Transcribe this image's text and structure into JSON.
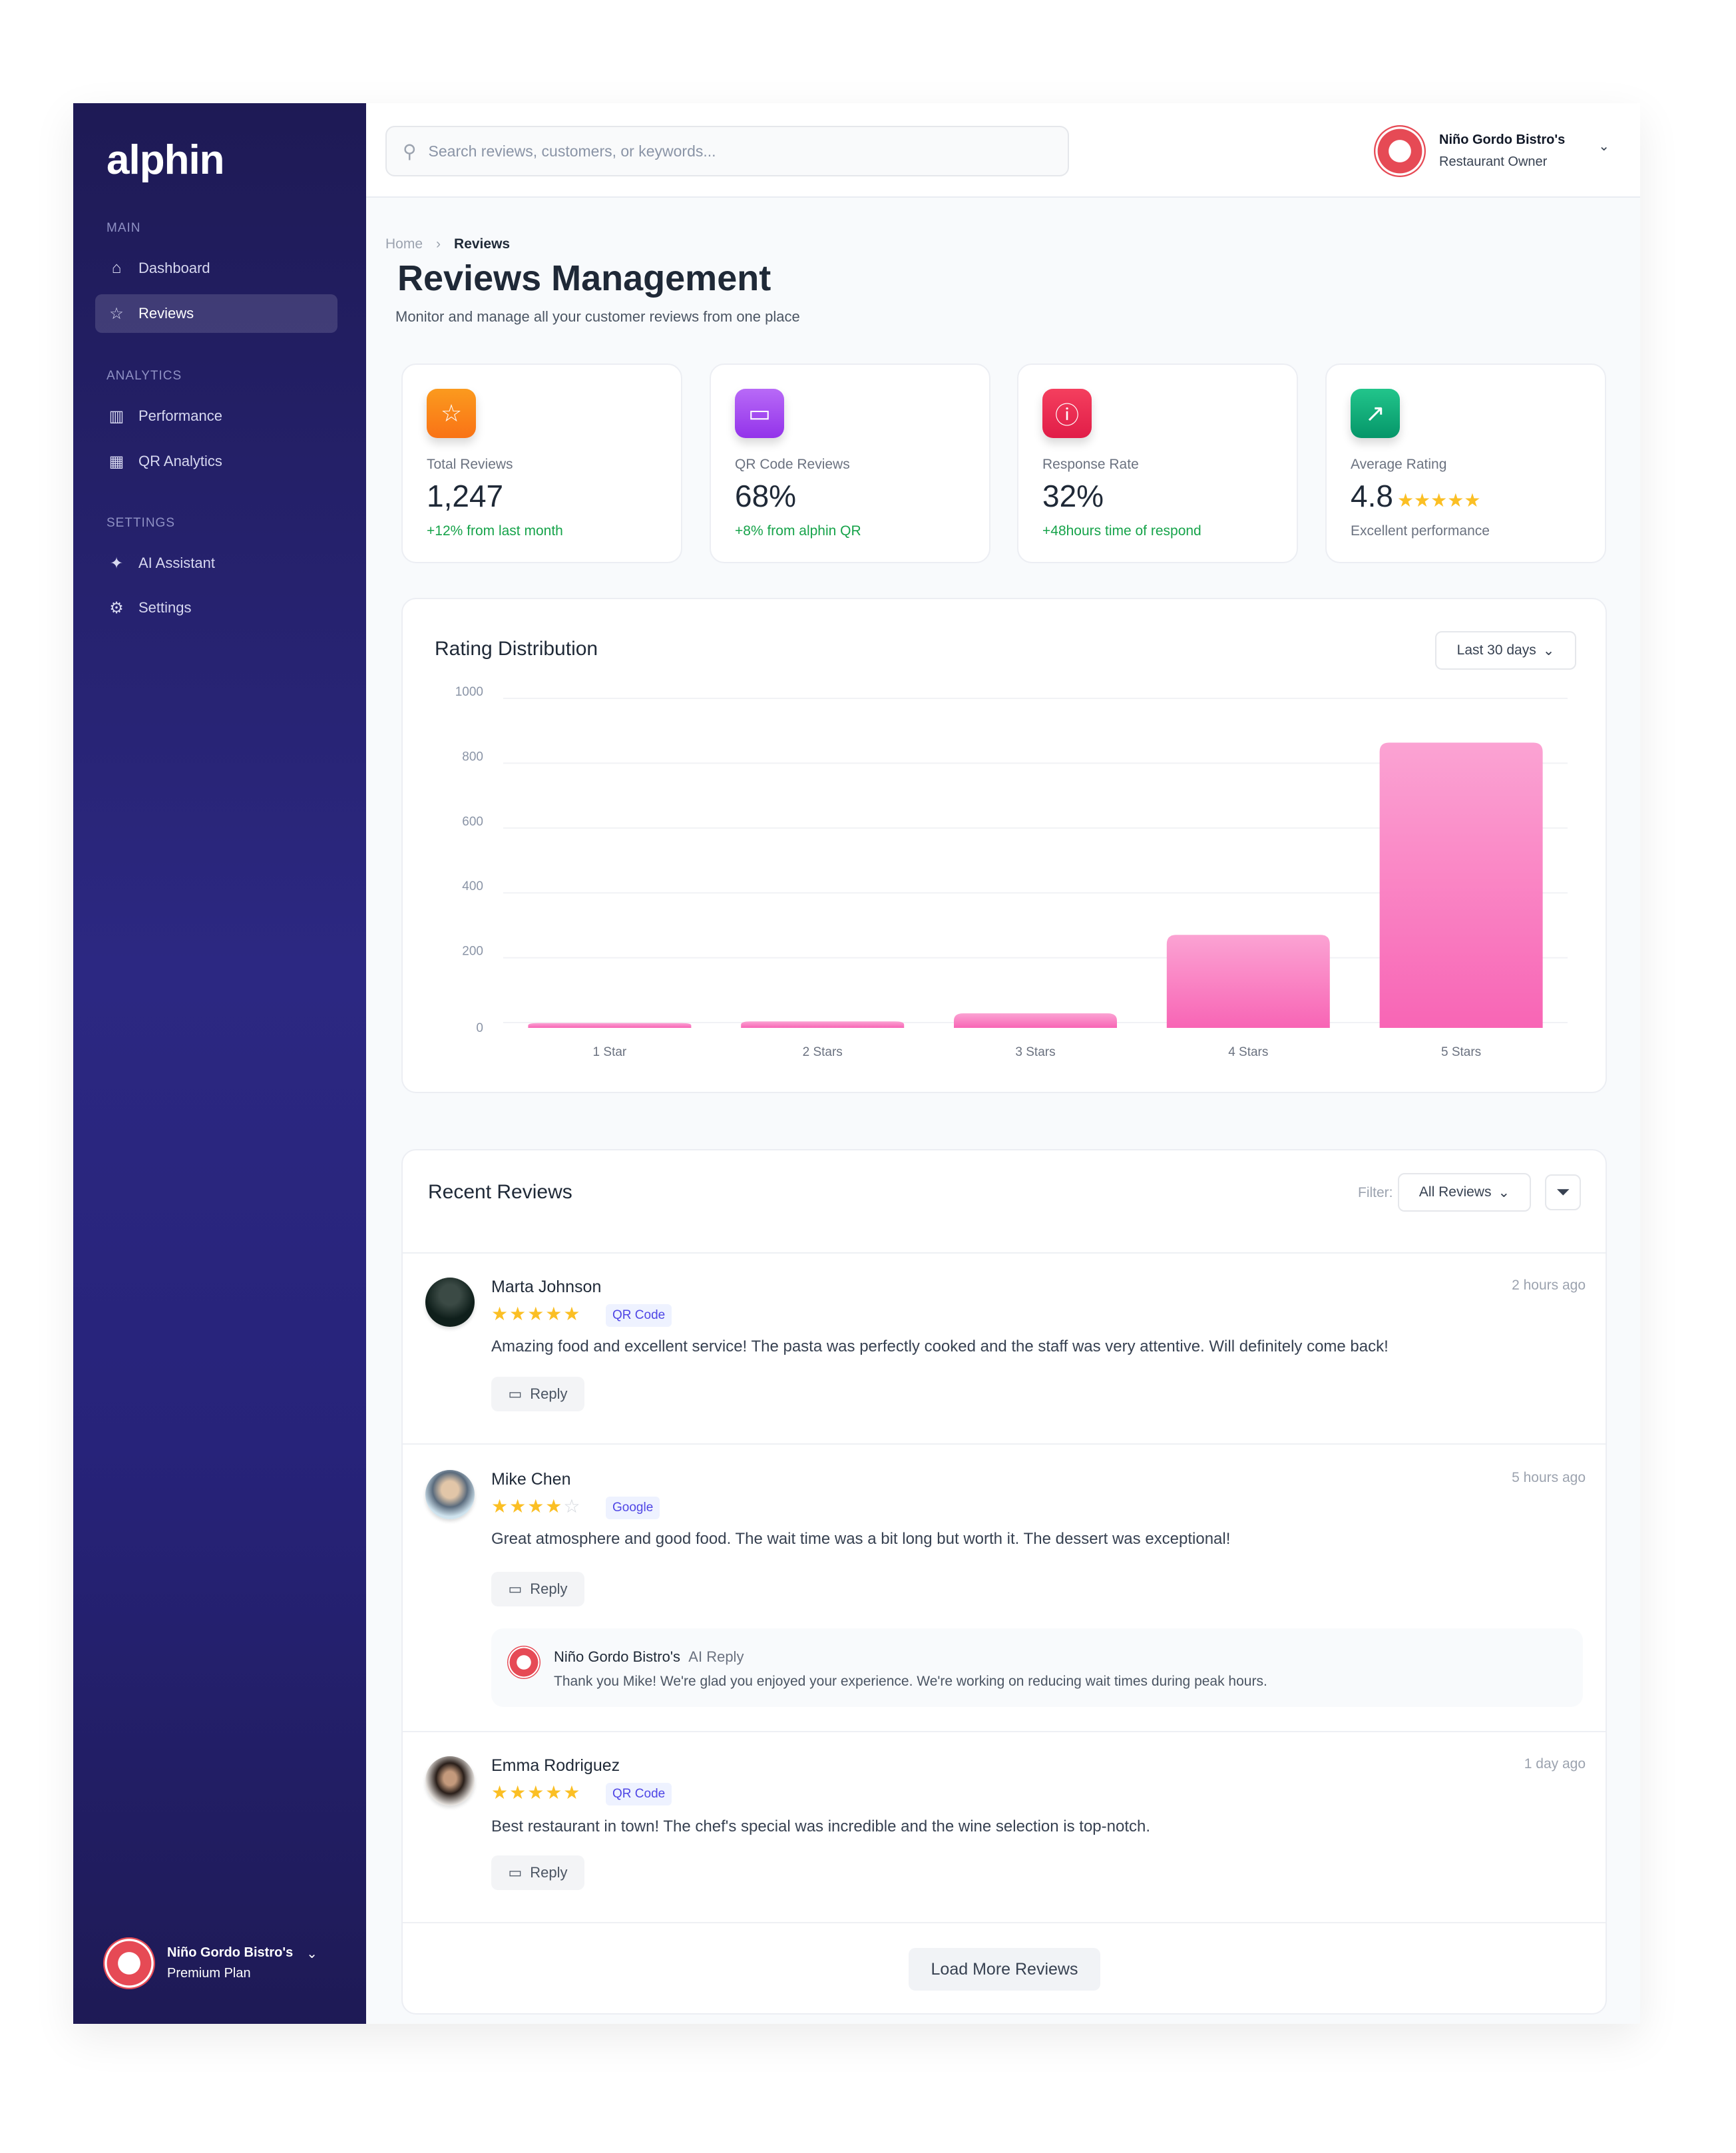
{
  "sidebar": {
    "logo": "alphin",
    "sections": [
      {
        "label": "MAIN",
        "items": [
          {
            "label": "Dashboard",
            "icon": "home-icon"
          },
          {
            "label": "Reviews",
            "icon": "star-icon",
            "active": true
          }
        ]
      },
      {
        "label": "ANALYTICS",
        "items": [
          {
            "label": "Performance",
            "icon": "bar-chart-icon"
          },
          {
            "label": "QR Analytics",
            "icon": "qr-code-icon"
          }
        ]
      },
      {
        "label": "SETTINGS",
        "items": [
          {
            "label": "AI Assistant",
            "icon": "sparkles-icon"
          },
          {
            "label": "Settings",
            "icon": "gear-icon"
          }
        ]
      }
    ],
    "profile": {
      "name": "Niño Gordo Bistro's",
      "plan": "Premium Plan"
    }
  },
  "header": {
    "search_placeholder": "Search reviews, customers, or keywords...",
    "profile": {
      "name": "Niño Gordo Bistro's",
      "role": "Restaurant Owner"
    }
  },
  "breadcrumb": {
    "home": "Home",
    "current": "Reviews"
  },
  "page": {
    "title": "Reviews Management",
    "subtitle": "Monitor and manage all your customer reviews from one place"
  },
  "stats": [
    {
      "label": "Total Reviews",
      "value": "1,247",
      "note": "+12% from last month",
      "icon": "star-icon",
      "color": "#f97316"
    },
    {
      "label": "QR Code Reviews",
      "value": "68%",
      "note": "+8% from alphin QR",
      "icon": "message-icon",
      "color": "#a855f7"
    },
    {
      "label": "Response Rate",
      "value": "32%",
      "note": "+48hours  time of respond",
      "icon": "alert-circle-icon",
      "color": "#e11d48"
    },
    {
      "label": "Average Rating",
      "value": "4.8",
      "note": "Excellent performance",
      "icon": "trending-up-icon",
      "color": "#10b981",
      "stars": 5
    }
  ],
  "chart": {
    "title": "Rating Distribution",
    "range": "Last 30 days"
  },
  "chart_data": {
    "type": "bar",
    "categories": [
      "1 Star",
      "2 Stars",
      "3 Stars",
      "4 Stars",
      "5 Stars"
    ],
    "values": [
      15,
      20,
      45,
      287,
      880
    ],
    "yticks": [
      "0",
      "200",
      "400",
      "600",
      "800",
      "1000"
    ],
    "ylim": [
      0,
      1000
    ],
    "grid": true,
    "color": "#f472b6"
  },
  "reviews": {
    "title": "Recent Reviews",
    "filter_label": "Filter:",
    "filter_value": "All Reviews",
    "reply_label": "Reply",
    "load_more": "Load More Reviews",
    "items": [
      {
        "name": "Marta Johnson",
        "rating": 5,
        "source": "QR Code",
        "time": "2 hours ago",
        "text": "Amazing food and excellent service! The pasta was perfectly cooked and the staff was very attentive. Will definitely come back!"
      },
      {
        "name": "Mike Chen",
        "rating": 4,
        "source": "Google",
        "time": "5 hours ago",
        "text": "Great atmosphere and good food. The wait time was a bit long but worth it. The dessert was exceptional!",
        "ai_reply": {
          "name": "Niño Gordo Bistro's",
          "tag": "AI Reply",
          "text": "Thank you Mike! We're glad you enjoyed your experience. We're working on reducing wait times during peak hours."
        }
      },
      {
        "name": "Emma Rodriguez",
        "rating": 5,
        "source": "QR Code",
        "time": "1 day ago",
        "text": "Best restaurant in town! The chef's special was incredible and the wine selection is top-notch."
      }
    ]
  }
}
